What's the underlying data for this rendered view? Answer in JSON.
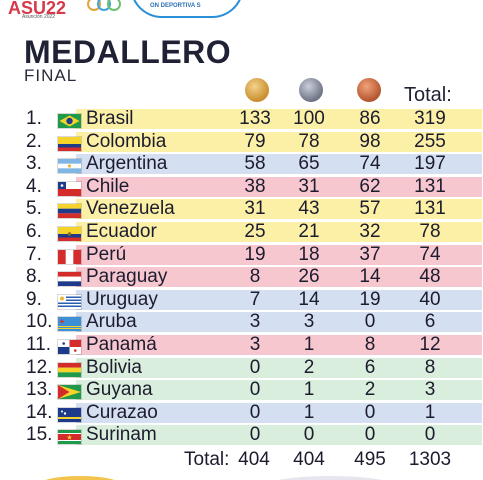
{
  "header": {
    "logo_text": "ASU22",
    "logo_sub": "Asunción 2022",
    "badge_text": "ON DEPORTIVA S"
  },
  "title": "MEDALLERO",
  "subtitle": "FINAL",
  "total_header": "Total:",
  "colors": {
    "yellow": "#fbf0a6",
    "blue": "#d4dff1",
    "pink": "#f7c7d0",
    "green": "#d9eedc"
  },
  "rows": [
    {
      "pos": "1.",
      "country": "Brasil",
      "flag": "brazil",
      "g": "133",
      "s": "100",
      "b": "86",
      "t": "319",
      "bg": "yellow"
    },
    {
      "pos": "2.",
      "country": "Colombia",
      "flag": "colombia",
      "g": "79",
      "s": "78",
      "b": "98",
      "t": "255",
      "bg": "yellow"
    },
    {
      "pos": "3.",
      "country": "Argentina",
      "flag": "argentina",
      "g": "58",
      "s": "65",
      "b": "74",
      "t": "197",
      "bg": "blue"
    },
    {
      "pos": "4.",
      "country": "Chile",
      "flag": "chile",
      "g": "38",
      "s": "31",
      "b": "62",
      "t": "131",
      "bg": "pink"
    },
    {
      "pos": "5.",
      "country": "Venezuela",
      "flag": "venezuela",
      "g": "31",
      "s": "43",
      "b": "57",
      "t": "131",
      "bg": "yellow"
    },
    {
      "pos": "6.",
      "country": "Ecuador",
      "flag": "ecuador",
      "g": "25",
      "s": "21",
      "b": "32",
      "t": "78",
      "bg": "yellow"
    },
    {
      "pos": "7.",
      "country": "Perú",
      "flag": "peru",
      "g": "19",
      "s": "18",
      "b": "37",
      "t": "74",
      "bg": "pink"
    },
    {
      "pos": "8.",
      "country": "Paraguay",
      "flag": "paraguay",
      "g": "8",
      "s": "26",
      "b": "14",
      "t": "48",
      "bg": "pink"
    },
    {
      "pos": "9.",
      "country": "Uruguay",
      "flag": "uruguay",
      "g": "7",
      "s": "14",
      "b": "19",
      "t": "40",
      "bg": "blue"
    },
    {
      "pos": "10.",
      "country": "Aruba",
      "flag": "aruba",
      "g": "3",
      "s": "3",
      "b": "0",
      "t": "6",
      "bg": "blue"
    },
    {
      "pos": "11.",
      "country": "Panamá",
      "flag": "panama",
      "g": "3",
      "s": "1",
      "b": "8",
      "t": "12",
      "bg": "pink"
    },
    {
      "pos": "12.",
      "country": "Bolivia",
      "flag": "bolivia",
      "g": "0",
      "s": "2",
      "b": "6",
      "t": "8",
      "bg": "green"
    },
    {
      "pos": "13.",
      "country": "Guyana",
      "flag": "guyana",
      "g": "0",
      "s": "1",
      "b": "2",
      "t": "3",
      "bg": "green"
    },
    {
      "pos": "14.",
      "country": "Curazao",
      "flag": "curacao",
      "g": "0",
      "s": "1",
      "b": "0",
      "t": "1",
      "bg": "blue"
    },
    {
      "pos": "15.",
      "country": "Surinam",
      "flag": "suriname",
      "g": "0",
      "s": "0",
      "b": "0",
      "t": "0",
      "bg": "green"
    }
  ],
  "footer": {
    "label": "Total:",
    "g": "404",
    "s": "404",
    "b": "495",
    "t": "1303"
  }
}
